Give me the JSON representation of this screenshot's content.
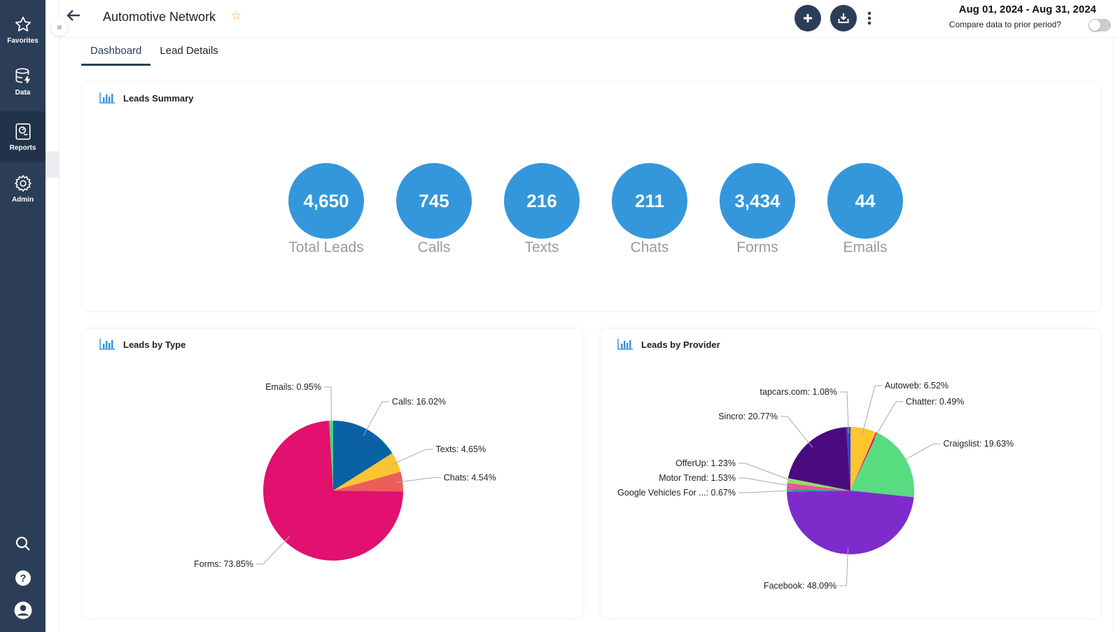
{
  "sidebar": {
    "items": [
      {
        "label": "Favorites",
        "icon": "star-icon"
      },
      {
        "label": "Data",
        "icon": "database-icon"
      },
      {
        "label": "Reports",
        "icon": "report-icon",
        "active": true
      },
      {
        "label": "Admin",
        "icon": "gear-icon"
      }
    ],
    "bottom_icons": [
      "search-icon",
      "help-icon",
      "user-icon"
    ]
  },
  "header": {
    "title": "Automotive Network",
    "date_range": "Aug 01, 2024 - Aug 31, 2024",
    "compare_label": "Compare data to prior period?",
    "compare_on": false
  },
  "tabs": [
    {
      "label": "Dashboard",
      "active": true
    },
    {
      "label": "Lead Details",
      "active": false
    }
  ],
  "summary": {
    "title": "Leads Summary",
    "kpis": [
      {
        "value": "4,650",
        "label": "Total Leads"
      },
      {
        "value": "745",
        "label": "Calls"
      },
      {
        "value": "216",
        "label": "Texts"
      },
      {
        "value": "211",
        "label": "Chats"
      },
      {
        "value": "3,434",
        "label": "Forms"
      },
      {
        "value": "44",
        "label": "Emails"
      }
    ],
    "circle_color": "#3497db"
  },
  "chart_data": [
    {
      "type": "pie",
      "title": "Leads by Type",
      "slices": [
        {
          "name": "Calls",
          "value": 16.02,
          "label": "Calls: 16.02%",
          "color": "#0a62a5"
        },
        {
          "name": "Texts",
          "value": 4.65,
          "label": "Texts: 4.65%",
          "color": "#fbc531"
        },
        {
          "name": "Chats",
          "value": 4.54,
          "label": "Chats: 4.54%",
          "color": "#eb5e5a"
        },
        {
          "name": "Forms",
          "value": 73.85,
          "label": "Forms: 73.85%",
          "color": "#e2106e"
        },
        {
          "name": "Emails",
          "value": 0.95,
          "label": "Emails: 0.95%",
          "color": "#4cd280"
        }
      ]
    },
    {
      "type": "pie",
      "title": "Leads by Provider",
      "slices": [
        {
          "name": "Autoweb",
          "value": 6.52,
          "label": "Autoweb: 6.52%",
          "color": "#fdc62e"
        },
        {
          "name": "Chatter",
          "value": 0.49,
          "label": "Chatter: 0.49%",
          "color": "#e8155f"
        },
        {
          "name": "Craigslist",
          "value": 19.63,
          "label": "Craigslist: 19.63%",
          "color": "#57dd7f"
        },
        {
          "name": "Facebook",
          "value": 48.09,
          "label": "Facebook: 48.09%",
          "color": "#7d2ccb"
        },
        {
          "name": "Google Vehicles For ...",
          "value": 0.67,
          "label": "Google Vehicles For ...: 0.67%",
          "color": "#17a38c"
        },
        {
          "name": "Motor Trend",
          "value": 1.53,
          "label": "Motor Trend: 1.53%",
          "color": "#ec4fa3"
        },
        {
          "name": "OfferUp",
          "value": 1.23,
          "label": "OfferUp: 1.23%",
          "color": "#8ee35b"
        },
        {
          "name": "Sincro",
          "value": 20.77,
          "label": "Sincro: 20.77%",
          "color": "#4a0b80"
        },
        {
          "name": "tapcars.com",
          "value": 1.08,
          "label": "tapcars.com: 1.08%",
          "color": "#2d43d6"
        }
      ]
    }
  ]
}
